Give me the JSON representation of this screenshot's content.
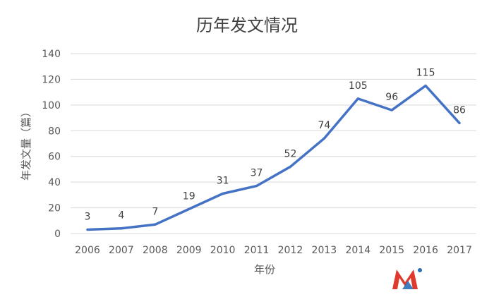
{
  "chart_data": {
    "type": "line",
    "title": "历年发文情况",
    "xlabel": "年份",
    "ylabel": "年发文量（篇）",
    "categories": [
      "2006",
      "2007",
      "2008",
      "2009",
      "2010",
      "2011",
      "2012",
      "2013",
      "2014",
      "2015",
      "2016",
      "2017"
    ],
    "series": [
      {
        "name": "",
        "values": [
          3,
          4,
          7,
          19,
          31,
          37,
          52,
          74,
          105,
          96,
          115,
          86
        ],
        "color": "#4472c4"
      }
    ],
    "data_labels": [
      "3",
      "4",
      "7",
      "19",
      "31",
      "37",
      "52",
      "74",
      "105",
      "96",
      "115",
      "86"
    ],
    "ylim": [
      0,
      140
    ],
    "yticks": [
      0,
      20,
      40,
      60,
      80,
      100,
      120,
      140
    ],
    "grid": true,
    "legend": "none"
  },
  "logo": {
    "text": "Me",
    "colors": [
      "#e03a2f",
      "#2a6fb8"
    ]
  }
}
